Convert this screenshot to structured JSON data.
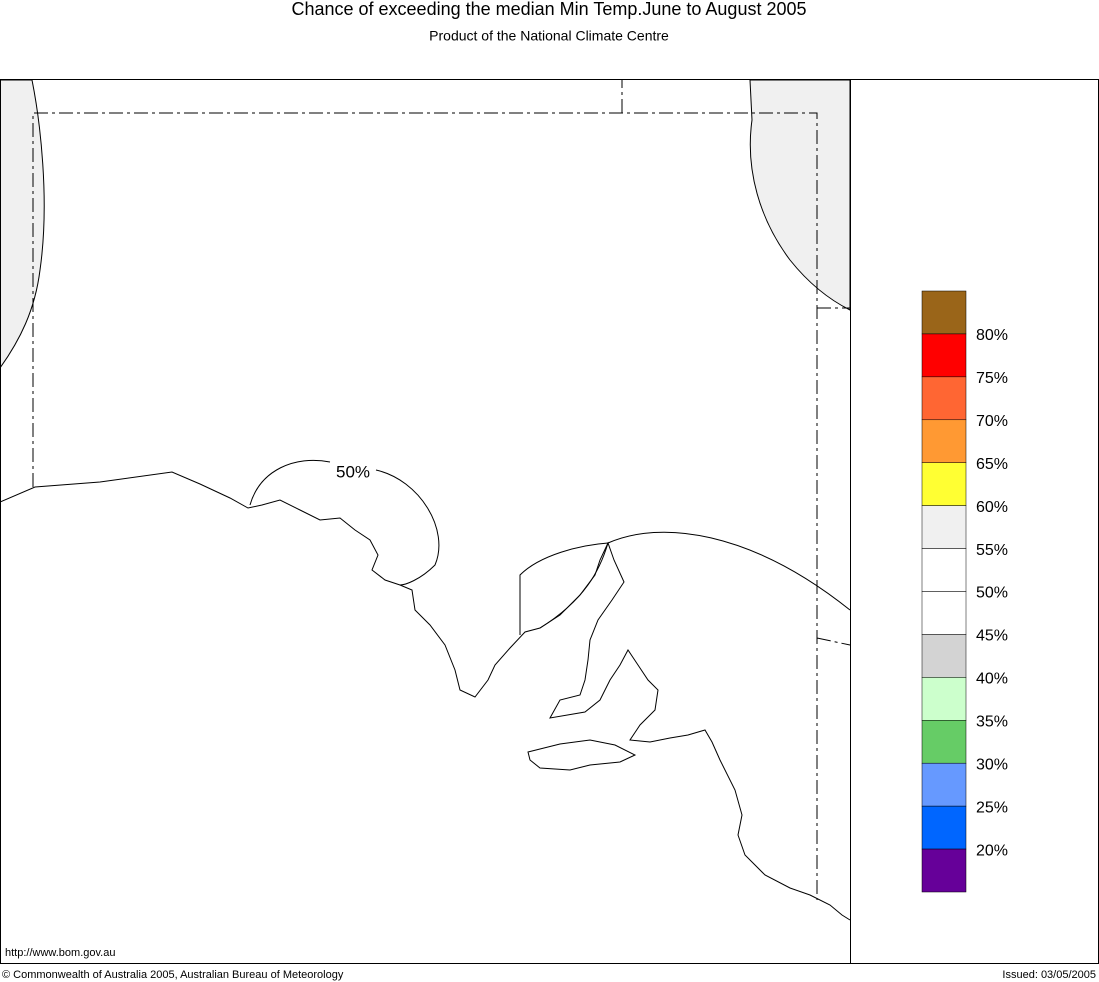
{
  "header": {
    "title": "Chance of exceeding the median Min Temp.June to August 2005",
    "subtitle": "Product of the National Climate Centre"
  },
  "map": {
    "contour_label": "50%",
    "region_colors": {
      "above_55": "#f0f0f0"
    }
  },
  "legend": {
    "colors": [
      "#9a6519",
      "#ff0000",
      "#ff6633",
      "#ff9933",
      "#ffff33",
      "#f0f0f0",
      "#ffffff",
      "#ffffff",
      "#d3d3d3",
      "#ccffcc",
      "#66cc66",
      "#6699ff",
      "#0066ff",
      "#660099"
    ],
    "labels": [
      "80%",
      "75%",
      "70%",
      "65%",
      "60%",
      "55%",
      "50%",
      "45%",
      "40%",
      "35%",
      "30%",
      "25%",
      "20%"
    ]
  },
  "footer": {
    "url": "http://www.bom.gov.au",
    "copyright": "© Commonwealth of Australia 2005, Australian Bureau of Meteorology",
    "issued": "Issued: 03/05/2005"
  }
}
